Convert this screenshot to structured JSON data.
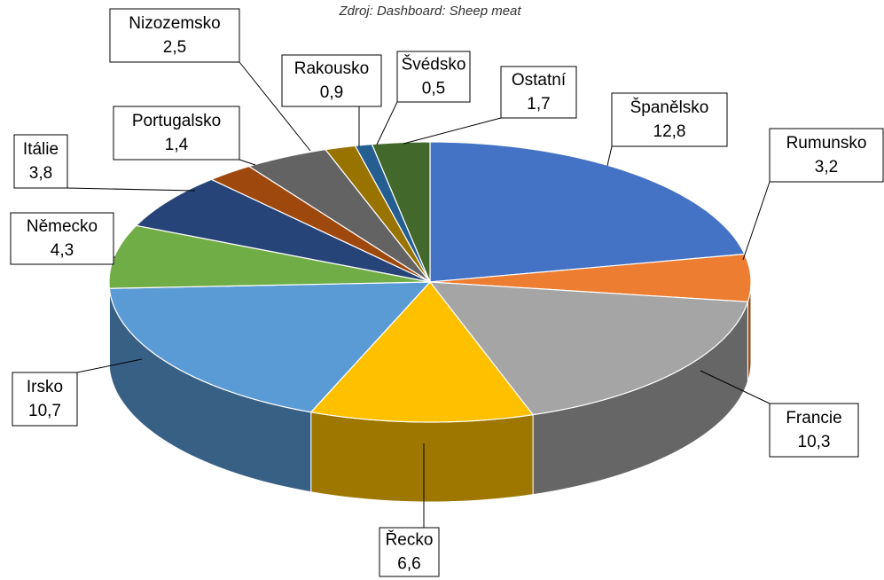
{
  "chart_data": {
    "type": "pie",
    "subtitle": "Zdroj: Dashboard: Sheep meat",
    "categories": [
      "Španělsko",
      "Rumunsko",
      "Francie",
      "Řecko",
      "Irsko",
      "Německo",
      "Itálie",
      "Portugalsko",
      "Nizozemsko",
      "Rakousko",
      "Švédsko",
      "Ostatní"
    ],
    "values": [
      12.8,
      3.2,
      10.3,
      6.6,
      10.7,
      4.3,
      3.8,
      1.4,
      2.5,
      0.9,
      0.5,
      1.7
    ],
    "value_labels": [
      "12,8",
      "3,2",
      "10,3",
      "6,6",
      "10,7",
      "4,3",
      "3,8",
      "1,4",
      "2,5",
      "0,9",
      "0,5",
      "1,7"
    ],
    "colors": [
      "#4472c4",
      "#ed7d31",
      "#a5a5a5",
      "#ffc000",
      "#5b9bd5",
      "#70ad47",
      "#264478",
      "#9e480e",
      "#636363",
      "#997300",
      "#255e91",
      "#43682b"
    ]
  }
}
